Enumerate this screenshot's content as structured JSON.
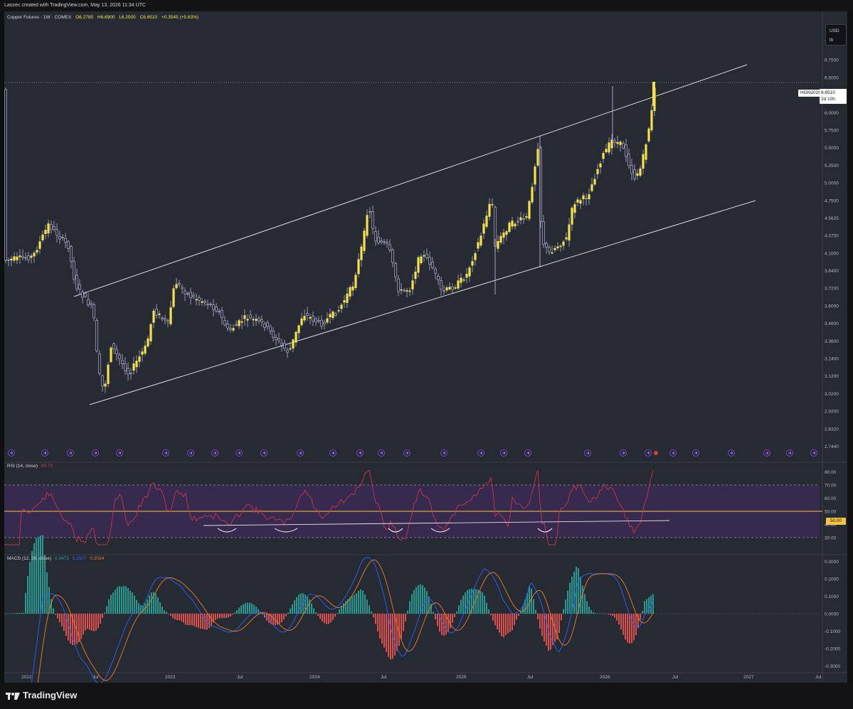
{
  "header": {
    "credit": "Laozec created with TradingView.com, May 13, 2026 11:34 UTC"
  },
  "symbol": {
    "name": "Copper Futures · 1W · COMEX",
    "open": "O6.2785",
    "high": "H6.6900",
    "low": "L6.2500",
    "close": "C6.6510",
    "change": "+0.3545 (+5.63%)",
    "ticker": "HGN2026",
    "last_price": "6.6510",
    "countdown": "2d 10h"
  },
  "units": {
    "currency": "USD",
    "unit": "lb"
  },
  "price_axis": [
    "7.0000",
    "6.7500",
    "6.5000",
    "6.2500",
    "6.0000",
    "5.7500",
    "5.5000",
    "5.2500",
    "5.0000",
    "4.7500",
    "4.5625",
    "4.3750",
    "4.1000",
    "3.8400",
    "3.7200",
    "3.6000",
    "3.4800",
    "3.3600",
    "3.2400",
    "3.1200",
    "3.0200",
    "2.9200",
    "2.8320",
    "2.7440"
  ],
  "time_axis": [
    "2022",
    "Jul",
    "2023",
    "Jul",
    "2024",
    "Jul",
    "2025",
    "Jul",
    "2026",
    "Jul",
    "2027",
    "Jul"
  ],
  "rsi": {
    "label": "RSI (14, close)",
    "value": "69.79",
    "axis": [
      "80.00",
      "70.00",
      "60.00",
      "50.00",
      "40.00",
      "30.00"
    ],
    "midline_label": "50.00"
  },
  "macd": {
    "label": "MACD (12, 26, close)",
    "hist": "0.0473",
    "macd": "0.2507",
    "signal": "0.2034",
    "axis": [
      "0.3000",
      "0.2000",
      "0.1000",
      "0.0000",
      "-0.1000",
      "-0.2000",
      "-0.3000"
    ]
  },
  "colors": {
    "bull": "#f5e24a",
    "bear": "#ffffff",
    "wick": "#c9c4e8",
    "rsi_line": "#d0314f",
    "rsi_band": "#3b2a55",
    "macd_line": "#2962ff",
    "signal_line": "#f57c25",
    "hist_up": "#26a69a",
    "hist_up_light": "#b2dfdb",
    "hist_down": "#ef5350",
    "hist_down_light": "#ffcdd2"
  },
  "branding": {
    "name": "TradingView"
  }
}
